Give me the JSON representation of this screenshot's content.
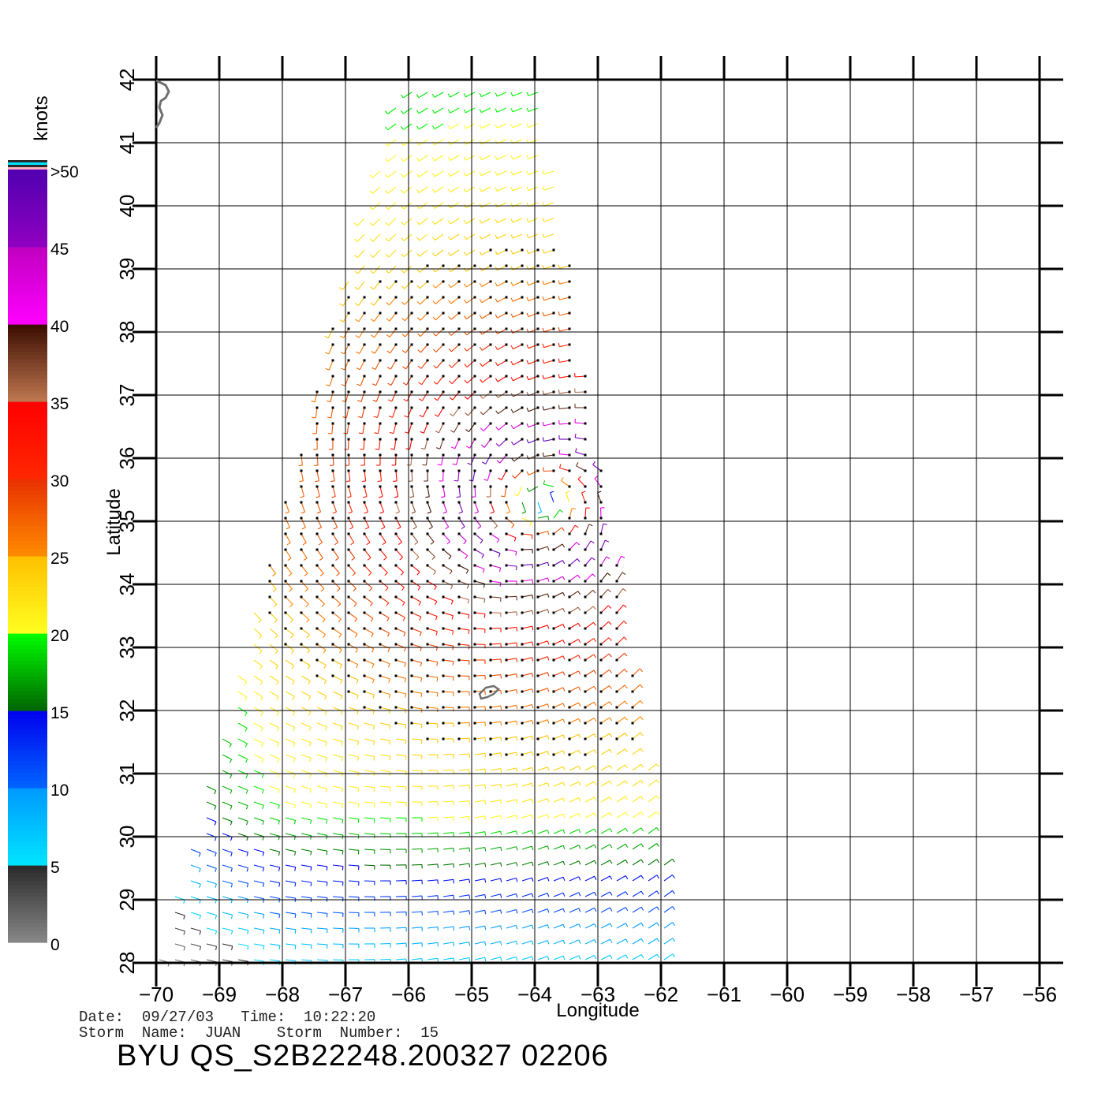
{
  "chart_data": {
    "type": "wind-barb-map",
    "xlabel": "Longitude",
    "ylabel": "Latitude",
    "xlim": [
      -70,
      -56
    ],
    "ylim": [
      28,
      42
    ],
    "x_ticks": [
      "−70",
      "−69",
      "−68",
      "−67",
      "−66",
      "−65",
      "−64",
      "−63",
      "−62",
      "−61",
      "−60",
      "−59",
      "−58",
      "−57",
      "−56"
    ],
    "y_ticks": [
      "28",
      "29",
      "30",
      "31",
      "32",
      "33",
      "34",
      "35",
      "36",
      "37",
      "38",
      "39",
      "40",
      "41",
      "42"
    ],
    "grid": true,
    "swath": {
      "top_lon_range": [
        -66.1,
        -63.9
      ],
      "bottom_lon_range": [
        -70,
        -61.7
      ],
      "lat_range": [
        28,
        42
      ]
    },
    "storm_center": {
      "lon": -63.9,
      "lat": 35.3
    },
    "colorbar": {
      "unit": "knots",
      "labels": [
        "0",
        "5",
        "10",
        "15",
        "20",
        "25",
        "30",
        "35",
        "40",
        "45",
        ">50"
      ],
      "stops": [
        0,
        5,
        10,
        15,
        20,
        25,
        30,
        35,
        40,
        45,
        50
      ],
      "colors": {
        "0-5": [
          "#888888",
          "#2a2a2a"
        ],
        "5-10": [
          "#00e5ff",
          "#0099ff"
        ],
        "10-15": [
          "#0066ff",
          "#0000ee"
        ],
        "15-20": [
          "#006400",
          "#00ff00"
        ],
        "20-25": [
          "#ffff20",
          "#ffc000"
        ],
        "25-30": [
          "#ff8c00",
          "#e83000"
        ],
        "30-35": [
          "#ff2800",
          "#ff0000"
        ],
        "35-40": [
          "#c07850",
          "#3a0c00"
        ],
        "40-45": [
          "#ff00ff",
          "#c000c0"
        ],
        "45-50": [
          "#9000c0",
          "#5000b0"
        ]
      }
    }
  },
  "footer": {
    "date_line": "Date:  09/27/03   Time:  10:22:20",
    "storm_line": "Storm  Name:  JUAN    Storm  Number:  15",
    "title": "BYU  QS_S2B22248.200327 02206"
  }
}
